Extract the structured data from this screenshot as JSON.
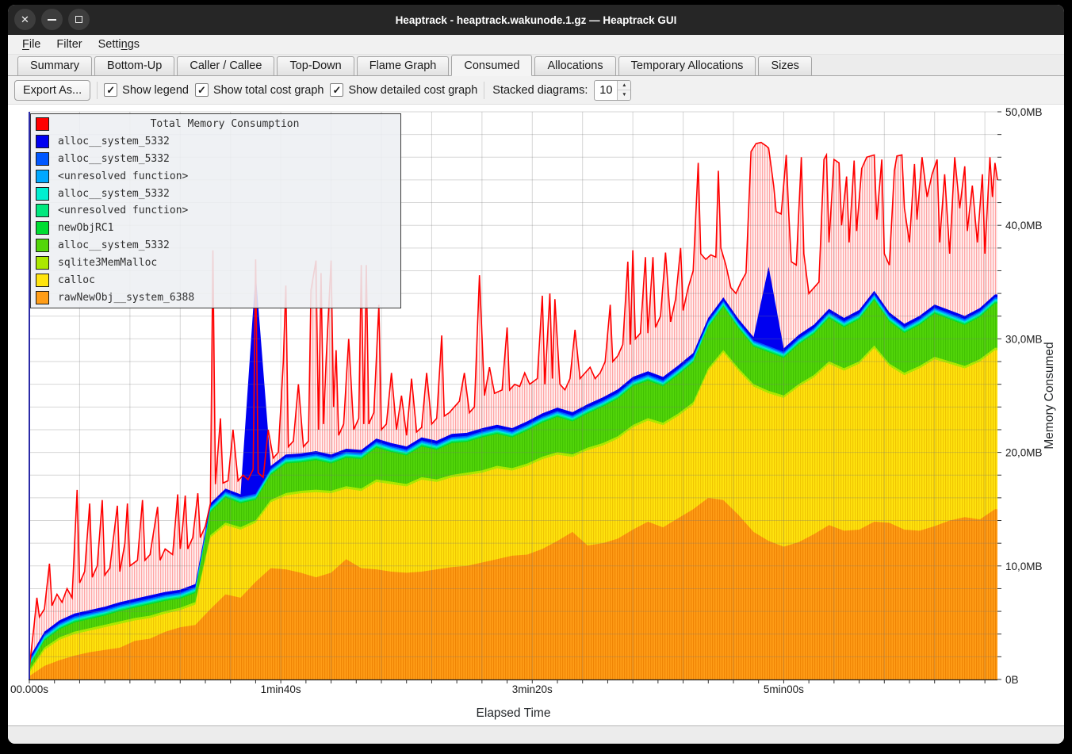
{
  "window": {
    "title": "Heaptrack - heaptrack.wakunode.1.gz — Heaptrack GUI"
  },
  "window_controls": {
    "close": "close",
    "minimize": "minimize",
    "maximize": "maximize"
  },
  "menu": {
    "items": [
      {
        "label": "File",
        "underline": 0
      },
      {
        "label": "Filter",
        "underline": -1
      },
      {
        "label": "Settings",
        "underline": 5
      }
    ]
  },
  "tabs": {
    "active": "Consumed",
    "items": [
      "Summary",
      "Bottom-Up",
      "Caller / Callee",
      "Top-Down",
      "Flame Graph",
      "Consumed",
      "Allocations",
      "Temporary Allocations",
      "Sizes"
    ]
  },
  "toolbar": {
    "export_label": "Export As...",
    "checkboxes": [
      {
        "label": "Show legend",
        "checked": true
      },
      {
        "label": "Show total cost graph",
        "checked": true
      },
      {
        "label": "Show detailed cost graph",
        "checked": true
      }
    ],
    "stacked_label": "Stacked diagrams:",
    "stacked_value": "10"
  },
  "chart_data": {
    "type": "area",
    "stacked": true,
    "xlabel": "Elapsed Time",
    "ylabel": "Memory Consumed",
    "xlim": [
      0,
      385
    ],
    "ylim": [
      0,
      50
    ],
    "grid": true,
    "x_ticks": [
      {
        "t": 0,
        "label": "00.000s"
      },
      {
        "t": 100,
        "label": "1min40s"
      },
      {
        "t": 200,
        "label": "3min20s"
      },
      {
        "t": 300,
        "label": "5min00s"
      }
    ],
    "y_ticks": [
      {
        "v": 0,
        "label": "0B"
      },
      {
        "v": 10,
        "label": "10,0MB"
      },
      {
        "v": 20,
        "label": "20,0MB"
      },
      {
        "v": 30,
        "label": "30,0MB"
      },
      {
        "v": 40,
        "label": "40,0MB"
      },
      {
        "v": 50,
        "label": "50,0MB"
      }
    ],
    "t_step": 6,
    "series": [
      {
        "name": "rawNewObj__system_6388",
        "color": "#FF9D17",
        "stripe": "#ED7F00",
        "values": [
          0.3,
          1.2,
          1.7,
          2.1,
          2.4,
          2.6,
          2.8,
          3.4,
          3.6,
          4.2,
          4.6,
          4.8,
          6.2,
          7.5,
          7.2,
          8.6,
          9.8,
          9.7,
          9.4,
          9.0,
          9.4,
          10.6,
          9.8,
          9.7,
          9.5,
          9.4,
          9.5,
          9.7,
          9.9,
          10.0,
          10.3,
          10.6,
          10.9,
          11.0,
          11.5,
          12.2,
          13.0,
          11.8,
          12.0,
          12.4,
          13.2,
          13.9,
          13.4,
          14.2,
          15.0,
          16.0,
          15.8,
          14.5,
          13.0,
          12.2,
          11.7,
          12.1,
          12.8,
          13.6,
          13.1,
          13.2,
          13.9,
          13.8,
          13.2,
          13.1,
          13.5,
          14.0,
          14.3,
          14.1,
          15.0
        ]
      },
      {
        "name": "calloc",
        "color": "#FFE40E",
        "stripe": "#EDBE00",
        "values": [
          0.3,
          1.4,
          1.8,
          1.9,
          1.9,
          2.0,
          2.1,
          1.8,
          1.8,
          1.6,
          1.5,
          1.8,
          6.3,
          6.1,
          6.0,
          5.2,
          5.8,
          6.5,
          7.0,
          7.5,
          7.0,
          6.2,
          6.8,
          7.7,
          7.7,
          7.6,
          8.1,
          7.7,
          7.9,
          8.0,
          7.9,
          8.0,
          7.5,
          7.8,
          7.9,
          7.6,
          6.6,
          8.4,
          8.6,
          8.8,
          9.0,
          8.9,
          9.0,
          9.0,
          9.2,
          11.2,
          13.0,
          12.7,
          12.8,
          13.0,
          13.1,
          13.7,
          13.8,
          14.2,
          14.1,
          14.6,
          15.3,
          13.8,
          13.6,
          14.3,
          14.7,
          13.8,
          13.1,
          13.9,
          14.0
        ]
      },
      {
        "name": "sqlite3MemMalloc",
        "color": "#ABE800",
        "const": 0.22
      },
      {
        "name": "alloc__system_5332",
        "color": "#53D60A",
        "stripe": "#3DBE00",
        "values": [
          0.3,
          0.6,
          0.7,
          0.8,
          0.8,
          0.8,
          0.9,
          0.9,
          1.0,
          0.9,
          0.8,
          0.8,
          2.0,
          2.2,
          2.1,
          1.8,
          2.2,
          2.6,
          2.5,
          2.6,
          2.4,
          2.5,
          2.6,
          2.8,
          2.6,
          2.5,
          2.7,
          2.6,
          2.8,
          2.7,
          2.9,
          2.8,
          2.7,
          2.9,
          3.0,
          3.1,
          2.9,
          3.0,
          3.2,
          3.3,
          3.4,
          3.3,
          3.2,
          3.4,
          3.5,
          3.6,
          3.8,
          3.5,
          3.3,
          3.4,
          3.3,
          3.5,
          3.6,
          3.8,
          3.6,
          3.7,
          4.0,
          3.7,
          3.5,
          3.6,
          3.8,
          3.7,
          3.6,
          3.7,
          3.9
        ]
      },
      {
        "name": "newObjRC1",
        "color": "#00DC32",
        "const": 0.1
      },
      {
        "name": "<unresolved function>",
        "color": "#00E87E",
        "const": 0.1
      },
      {
        "name": "alloc__system_5332",
        "color": "#00EFD0",
        "const": 0.1
      },
      {
        "name": "<unresolved function>",
        "color": "#00A8FF",
        "const": 0.12
      },
      {
        "name": "alloc__system_5332",
        "color": "#0057FF",
        "const": 0.12
      },
      {
        "name": "alloc__system_5332",
        "color": "#0000F0",
        "points": [
          [
            0,
            0.25
          ],
          [
            84,
            0.25
          ],
          [
            90,
            19.5
          ],
          [
            96,
            0.25
          ],
          [
            288,
            0.3
          ],
          [
            294,
            7.0
          ],
          [
            300,
            0.3
          ],
          [
            385,
            0.25
          ]
        ]
      }
    ],
    "total": {
      "name": "Total Memory Consumption",
      "color": "#FF0000",
      "fill_bg": "rgba(255,170,170,0.18)",
      "fill_stripe": "rgba(255,30,30,0.45)",
      "points": [
        [
          0,
          1.0
        ],
        [
          2,
          5.0
        ],
        [
          3,
          7.2
        ],
        [
          4,
          5.5
        ],
        [
          6,
          6.2
        ],
        [
          8,
          10.2
        ],
        [
          9,
          6.5
        ],
        [
          11,
          7.5
        ],
        [
          13,
          6.8
        ],
        [
          15,
          8.0
        ],
        [
          17,
          7.2
        ],
        [
          19,
          16.7
        ],
        [
          20,
          8.5
        ],
        [
          22,
          9.5
        ],
        [
          24,
          15.5
        ],
        [
          25,
          9.0
        ],
        [
          27,
          10.0
        ],
        [
          29,
          15.8
        ],
        [
          30,
          9.2
        ],
        [
          32,
          9.8
        ],
        [
          35,
          15.3
        ],
        [
          36,
          9.5
        ],
        [
          38,
          12.0
        ],
        [
          39,
          15.5
        ],
        [
          40,
          10.0
        ],
        [
          43,
          10.5
        ],
        [
          45,
          15.8
        ],
        [
          46,
          10.5
        ],
        [
          48,
          11.0
        ],
        [
          51,
          15.2
        ],
        [
          52,
          10.5
        ],
        [
          54,
          11.5
        ],
        [
          57,
          11.0
        ],
        [
          59,
          16.3
        ],
        [
          60,
          11.5
        ],
        [
          61,
          13.5
        ],
        [
          62,
          16.2
        ],
        [
          63,
          11.5
        ],
        [
          65,
          12.5
        ],
        [
          67,
          16.4
        ],
        [
          68,
          12.5
        ],
        [
          70,
          13.5
        ],
        [
          72,
          15.5
        ],
        [
          73,
          37.8
        ],
        [
          74,
          17.2
        ],
        [
          76,
          23.0
        ],
        [
          77,
          17.3
        ],
        [
          79,
          17.5
        ],
        [
          81,
          22.0
        ],
        [
          83,
          17.5
        ],
        [
          85,
          18.0
        ],
        [
          87,
          17.6
        ],
        [
          89,
          18.5
        ],
        [
          90,
          37.0
        ],
        [
          91,
          18.2
        ],
        [
          93,
          17.8
        ],
        [
          95,
          22.0
        ],
        [
          97,
          19.5
        ],
        [
          99,
          20.0
        ],
        [
          101,
          28.0
        ],
        [
          102,
          34.7
        ],
        [
          103,
          20.5
        ],
        [
          105,
          21.0
        ],
        [
          107,
          26.0
        ],
        [
          109,
          20.5
        ],
        [
          111,
          21.0
        ],
        [
          112,
          34.3
        ],
        [
          114,
          36.9
        ],
        [
          115,
          22.0
        ],
        [
          116,
          35.8
        ],
        [
          117,
          22.5
        ],
        [
          118,
          28.0
        ],
        [
          120,
          36.9
        ],
        [
          121,
          24.0
        ],
        [
          122,
          29.0
        ],
        [
          123,
          21.5
        ],
        [
          125,
          22.5
        ],
        [
          127,
          30.0
        ],
        [
          129,
          22.0
        ],
        [
          131,
          23.0
        ],
        [
          132,
          36.5
        ],
        [
          133,
          22.5
        ],
        [
          134,
          36.5
        ],
        [
          135,
          22.5
        ],
        [
          137,
          23.5
        ],
        [
          139,
          33.0
        ],
        [
          140,
          22.0
        ],
        [
          142,
          22.5
        ],
        [
          144,
          27.0
        ],
        [
          146,
          22.0
        ],
        [
          148,
          25.0
        ],
        [
          150,
          21.5
        ],
        [
          152,
          26.5
        ],
        [
          154,
          21.8
        ],
        [
          156,
          22.2
        ],
        [
          158,
          27.0
        ],
        [
          160,
          22.5
        ],
        [
          162,
          23.0
        ],
        [
          164,
          30.3
        ],
        [
          165,
          23.2
        ],
        [
          167,
          23.5
        ],
        [
          169,
          24.0
        ],
        [
          171,
          24.5
        ],
        [
          173,
          27.0
        ],
        [
          175,
          23.5
        ],
        [
          177,
          24.0
        ],
        [
          179,
          35.6
        ],
        [
          181,
          25.0
        ],
        [
          183,
          27.5
        ],
        [
          185,
          25.2
        ],
        [
          188,
          25.5
        ],
        [
          190,
          31.0
        ],
        [
          191,
          25.5
        ],
        [
          193,
          26.0
        ],
        [
          195,
          25.8
        ],
        [
          197,
          27.0
        ],
        [
          199,
          26.0
        ],
        [
          202,
          26.5
        ],
        [
          204,
          33.8
        ],
        [
          205,
          26.0
        ],
        [
          207,
          34.0
        ],
        [
          208,
          26.5
        ],
        [
          209,
          33.5
        ],
        [
          211,
          26.0
        ],
        [
          213,
          25.5
        ],
        [
          215,
          26.5
        ],
        [
          217,
          30.8
        ],
        [
          219,
          26.5
        ],
        [
          221,
          27.0
        ],
        [
          223,
          27.5
        ],
        [
          225,
          26.5
        ],
        [
          227,
          27.0
        ],
        [
          229,
          28.0
        ],
        [
          231,
          33.0
        ],
        [
          232,
          28.0
        ],
        [
          234,
          28.5
        ],
        [
          236,
          29.5
        ],
        [
          238,
          36.8
        ],
        [
          239,
          29.5
        ],
        [
          240,
          37.8
        ],
        [
          241,
          30.0
        ],
        [
          243,
          30.5
        ],
        [
          245,
          37.2
        ],
        [
          246,
          30.5
        ],
        [
          248,
          37.2
        ],
        [
          249,
          31.0
        ],
        [
          251,
          32.0
        ],
        [
          253,
          37.6
        ],
        [
          255,
          31.5
        ],
        [
          257,
          33.5
        ],
        [
          259,
          38.0
        ],
        [
          260,
          32.5
        ],
        [
          262,
          34.5
        ],
        [
          264,
          36.0
        ],
        [
          266,
          45.5
        ],
        [
          267,
          37.5
        ],
        [
          269,
          37.0
        ],
        [
          271,
          37.4
        ],
        [
          273,
          37.2
        ],
        [
          274,
          44.8
        ],
        [
          275,
          38.0
        ],
        [
          277,
          36.5
        ],
        [
          279,
          34.5
        ],
        [
          281,
          34.0
        ],
        [
          283,
          35.0
        ],
        [
          285,
          35.8
        ],
        [
          287,
          46.5
        ],
        [
          289,
          47.2
        ],
        [
          291,
          47.3
        ],
        [
          293,
          47.0
        ],
        [
          294,
          46.8
        ],
        [
          296,
          43.5
        ],
        [
          297,
          41.2
        ],
        [
          299,
          41.0
        ],
        [
          301,
          46.2
        ],
        [
          302,
          41.0
        ],
        [
          303,
          36.8
        ],
        [
          305,
          36.5
        ],
        [
          307,
          46.0
        ],
        [
          308,
          37.5
        ],
        [
          310,
          34.0
        ],
        [
          312,
          34.5
        ],
        [
          314,
          35.0
        ],
        [
          316,
          45.8
        ],
        [
          317,
          46.2
        ],
        [
          318,
          38.5
        ],
        [
          320,
          45.8
        ],
        [
          322,
          45.5
        ],
        [
          323,
          40.0
        ],
        [
          325,
          44.3
        ],
        [
          326,
          38.5
        ],
        [
          328,
          45.7
        ],
        [
          329,
          39.5
        ],
        [
          331,
          45.0
        ],
        [
          333,
          46.0
        ],
        [
          336,
          46.2
        ],
        [
          337,
          40.5
        ],
        [
          339,
          45.8
        ],
        [
          340,
          37.5
        ],
        [
          342,
          36.5
        ],
        [
          344,
          44.8
        ],
        [
          345,
          46.1
        ],
        [
          347,
          46.2
        ],
        [
          348,
          41.5
        ],
        [
          350,
          38.5
        ],
        [
          352,
          45.4
        ],
        [
          353,
          40.5
        ],
        [
          355,
          46.0
        ],
        [
          357,
          42.5
        ],
        [
          359,
          44.5
        ],
        [
          361,
          45.8
        ],
        [
          362,
          38.5
        ],
        [
          364,
          44.5
        ],
        [
          366,
          37.5
        ],
        [
          368,
          46.0
        ],
        [
          370,
          41.5
        ],
        [
          372,
          45.2
        ],
        [
          373,
          39.5
        ],
        [
          375,
          43.5
        ],
        [
          377,
          38.5
        ],
        [
          379,
          44.5
        ],
        [
          380,
          37.5
        ],
        [
          382,
          46.0
        ],
        [
          383,
          42.5
        ],
        [
          384,
          45.5
        ],
        [
          385,
          44.0
        ]
      ]
    }
  }
}
